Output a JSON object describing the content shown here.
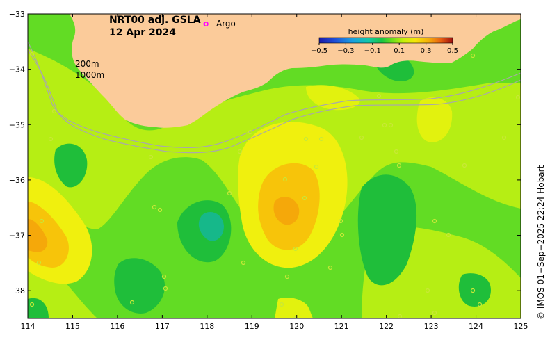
{
  "title": {
    "product": "NRT00 adj. GSLA",
    "date": "12 Apr 2024"
  },
  "legend": {
    "argo_marker": "o",
    "argo_label": "Argo",
    "isobath_200": "200m",
    "isobath_1000": "1000m"
  },
  "colorbar": {
    "title": "height anomaly (m)",
    "ticks": [
      "−0.5",
      "−0.3",
      "−0.1",
      "0.1",
      "0.3",
      "0.5"
    ],
    "tick_values": [
      -0.5,
      -0.3,
      -0.1,
      0.1,
      0.3,
      0.5
    ],
    "range": [
      -0.5,
      0.5
    ]
  },
  "axes": {
    "x_ticks": [
      "114",
      "115",
      "116",
      "117",
      "118",
      "119",
      "120",
      "121",
      "122",
      "123",
      "124",
      "125"
    ],
    "y_ticks": [
      "−33",
      "−34",
      "−35",
      "−36",
      "−37",
      "−38"
    ],
    "lon_range": [
      114,
      125
    ],
    "lat_range": [
      -38.5,
      -33
    ]
  },
  "credit": "© IMOS 01−Sep−2025 22:24 Hobart",
  "colors": {
    "land": "#fbcb9a",
    "argo": "#ff00ff",
    "isobath": "#a9a9a9"
  }
}
